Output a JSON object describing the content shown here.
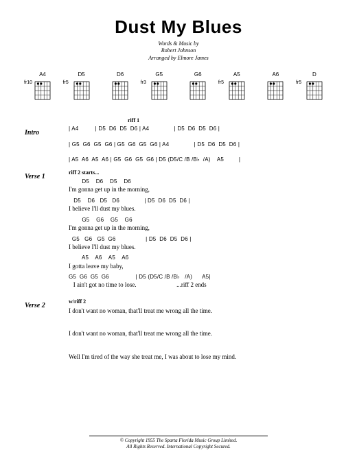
{
  "title": "Dust My Blues",
  "byline1": "Words & Music by",
  "byline2": "Robert Johnson",
  "byline3": "Arranged by Elmore James",
  "chords": [
    {
      "name": "A4",
      "fret": "fr10"
    },
    {
      "name": "D5",
      "fret": "fr5"
    },
    {
      "name": "D6",
      "fret": ""
    },
    {
      "name": "G5",
      "fret": "fr3"
    },
    {
      "name": "G6",
      "fret": ""
    },
    {
      "name": "A5",
      "fret": "fr5"
    },
    {
      "name": "A6",
      "fret": ""
    },
    {
      "name": "D",
      "fret": "fr5"
    }
  ],
  "riff1_label": "riff 1",
  "intro": {
    "label": "Intro",
    "lines": [
      "| A4          | D5  D6  D5  D6 | A4               | D5  D6  D5  D6 |",
      "",
      "| G5  G6  G5  G6 | G5  G6  G5  G6 | A4               | D5  D6  D5  D6 |",
      "",
      "| A5  A6  A5  A6 | G5  G6  G5  G6 | D5 (D5/C /B /B♭  /A)    A5         |"
    ]
  },
  "riff2_label": "riff 2 starts...",
  "verse1": {
    "label": "Verse 1",
    "pairs": [
      {
        "c": "        D5    D6    D5    D6",
        "l": "I'm gonna get up in the morning,"
      },
      {
        "c": "   D5    D6   D5   D6               | D5  D6  D5  D6 |",
        "l": "I believe I'll dust my blues."
      },
      {
        "c": "        G5    G6    G5    G6",
        "l": "I'm gonna get up in the morning,"
      },
      {
        "c": "  G5   G6   G5  G6                  | D5  D6  D5  D6 |",
        "l": "I believe I'll dust my blues."
      },
      {
        "c": "        A5    A6    A5    A6",
        "l": "I gotta leave my baby,"
      },
      {
        "c": "G5  G6  G5  G6                | D5 (D5/C /B /B♭   /A)      A5|",
        "l": "   I ain't got no time to lose.                          ...riff 2 ends"
      }
    ]
  },
  "verse2": {
    "label": "Verse 2",
    "note": "w/riff 2",
    "lines": [
      "I don't want no woman, that'll treat me wrong all the time.",
      "",
      "I don't want no woman, that'll treat me wrong all the time.",
      "",
      "Well I'm tired of the way she treat me, I was about to lose my mind."
    ]
  },
  "copyright1": "© Copyright 1955 The Sparta Florida Music Group Limited.",
  "copyright2": "All Rights Reserved. International Copyright Secured."
}
